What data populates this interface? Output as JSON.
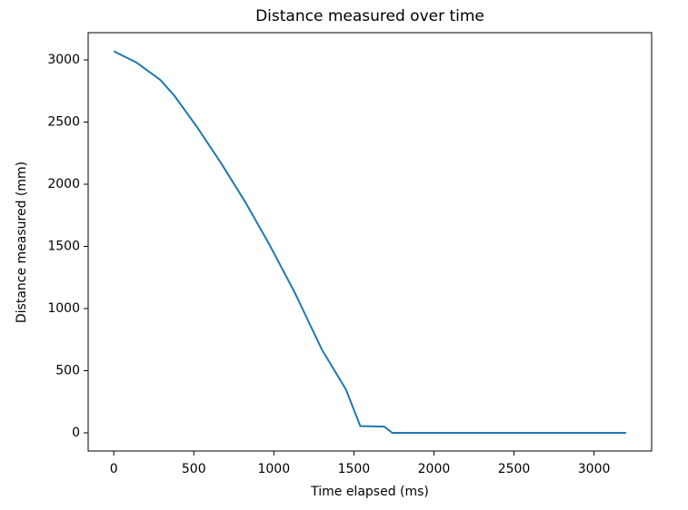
{
  "chart_data": {
    "type": "line",
    "title": "Distance measured over time",
    "x_label": "Time elapsed (ms)",
    "y_label": "Distance measured (mm)",
    "x": [
      0,
      140,
      290,
      380,
      520,
      670,
      820,
      970,
      1130,
      1300,
      1450,
      1540,
      1690,
      1740,
      1900,
      2100,
      2300,
      2500,
      2700,
      2900,
      3050,
      3200
    ],
    "series": [
      {
        "name": "Distance",
        "color": "#1f77b4",
        "values": [
          3070,
          2980,
          2840,
          2710,
          2460,
          2170,
          1860,
          1520,
          1130,
          670,
          350,
          55,
          50,
          0,
          0,
          0,
          0,
          0,
          0,
          0,
          0,
          0
        ]
      }
    ],
    "xlim": [
      -160,
      3360
    ],
    "ylim": [
      -146,
      3219
    ],
    "xticks": [
      0,
      500,
      1000,
      1500,
      2000,
      2500,
      3000
    ],
    "yticks": [
      0,
      500,
      1000,
      1500,
      2000,
      2500,
      3000
    ],
    "grid": false
  }
}
